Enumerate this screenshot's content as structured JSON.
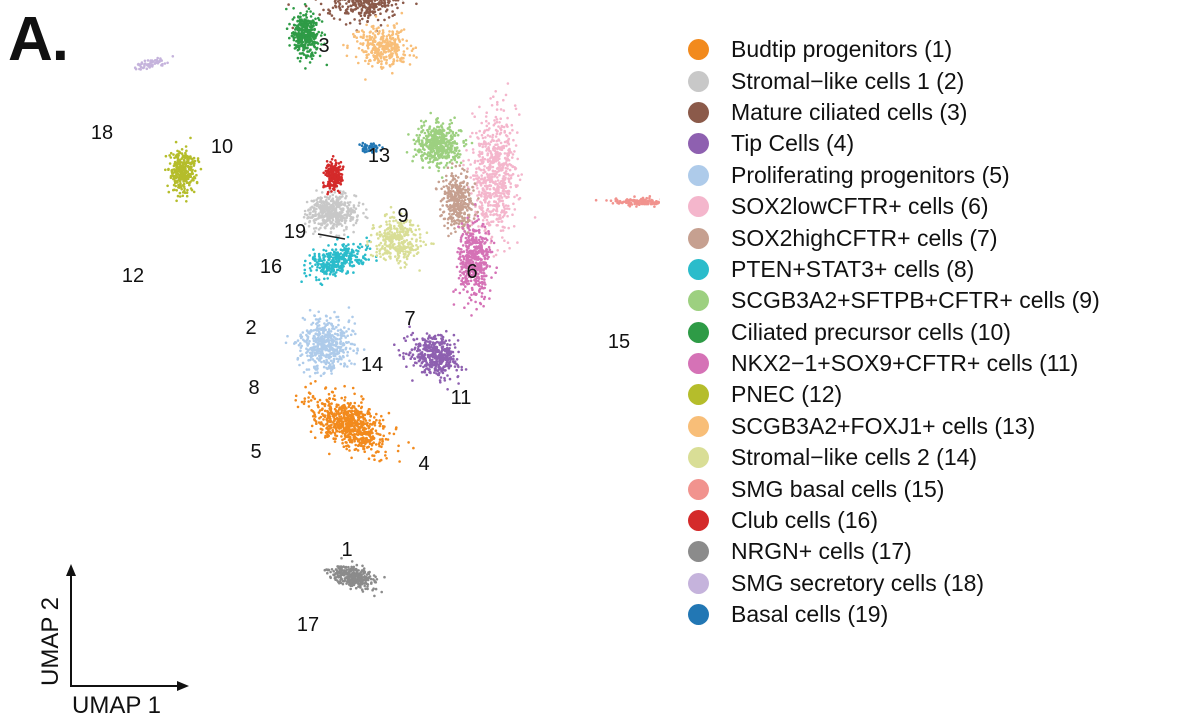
{
  "panel_label": "A.",
  "chart_data": {
    "type": "scatter",
    "title": "",
    "xlabel": "UMAP 1",
    "ylabel": "UMAP 2",
    "legend_position": "right",
    "series": [
      {
        "name": "Budtip progenitors (1)",
        "cluster_number": "1",
        "color": "#F28A1D",
        "center": [
          0.5,
          -2.6
        ],
        "spread": [
          0.95,
          0.5
        ],
        "rotation": -28,
        "points": 700
      },
      {
        "name": "Stromal−like cells 1 (2)",
        "cluster_number": "2",
        "color": "#C8C8C8",
        "center": [
          0.05,
          2.7
        ],
        "spread": [
          0.55,
          0.4
        ],
        "rotation": 0,
        "points": 450
      },
      {
        "name": "Mature ciliated cells (3)",
        "cluster_number": "3",
        "color": "#8B5A4A",
        "center": [
          0.9,
          8.15
        ],
        "spread": [
          0.85,
          0.55
        ],
        "rotation": 0,
        "points": 650
      },
      {
        "name": "Tip Cells (4)",
        "cluster_number": "4",
        "color": "#8E60B0",
        "center": [
          2.6,
          -0.9
        ],
        "spread": [
          0.6,
          0.45
        ],
        "rotation": -30,
        "points": 420
      },
      {
        "name": "Proliferating progenitors (5)",
        "cluster_number": "5",
        "color": "#AECBEA",
        "center": [
          -0.1,
          -0.6
        ],
        "spread": [
          0.55,
          0.6
        ],
        "rotation": 0,
        "points": 500
      },
      {
        "name": "SOX2lowCFTR+ cells (6)",
        "cluster_number": "6",
        "color": "#F4B6CC",
        "center": [
          4.1,
          3.6
        ],
        "spread": [
          0.5,
          1.4
        ],
        "rotation": 0,
        "points": 650
      },
      {
        "name": "SOX2highCFTR+ cells (7)",
        "cluster_number": "7",
        "color": "#C6A090",
        "center": [
          3.2,
          3.0
        ],
        "spread": [
          0.35,
          0.6
        ],
        "rotation": 0,
        "points": 350
      },
      {
        "name": "PTEN+STAT3+ cells (8)",
        "cluster_number": "8",
        "color": "#2BBCCB",
        "center": [
          0.2,
          1.5
        ],
        "spread": [
          0.7,
          0.3
        ],
        "rotation": 20,
        "points": 330
      },
      {
        "name": "SCGB3A2+SFTPB+CFTR+ cells (9)",
        "cluster_number": "9",
        "color": "#9DD080",
        "center": [
          2.7,
          4.4
        ],
        "spread": [
          0.5,
          0.45
        ],
        "rotation": 0,
        "points": 450
      },
      {
        "name": "Ciliated precursor cells (10)",
        "cluster_number": "10",
        "color": "#2E9B46",
        "center": [
          -0.6,
          7.1
        ],
        "spread": [
          0.3,
          0.5
        ],
        "rotation": 0,
        "points": 350
      },
      {
        "name": "NKX2−1+SOX9+CFTR+ cells (11)",
        "cluster_number": "11",
        "color": "#D572B6",
        "center": [
          3.6,
          1.5
        ],
        "spread": [
          0.35,
          0.85
        ],
        "rotation": 0,
        "points": 450
      },
      {
        "name": "PNEC (12)",
        "cluster_number": "12",
        "color": "#B5BD2B",
        "center": [
          -3.7,
          3.7
        ],
        "spread": [
          0.3,
          0.5
        ],
        "rotation": 0,
        "points": 320
      },
      {
        "name": "SCGB3A2+FOXJ1+ cells (13)",
        "cluster_number": "13",
        "color": "#F8BE78",
        "center": [
          1.3,
          6.8
        ],
        "spread": [
          0.6,
          0.45
        ],
        "rotation": 0,
        "points": 320
      },
      {
        "name": "Stromal−like cells 2 (14)",
        "cluster_number": "14",
        "color": "#D9DE96",
        "center": [
          1.7,
          2.0
        ],
        "spread": [
          0.55,
          0.5
        ],
        "rotation": 0,
        "points": 320
      },
      {
        "name": "SMG basal cells (15)",
        "cluster_number": "15",
        "color": "#F1938E",
        "center": [
          7.7,
          2.95
        ],
        "spread": [
          0.75,
          0.08
        ],
        "rotation": 0,
        "points": 150
      },
      {
        "name": "Club cells (16)",
        "cluster_number": "16",
        "color": "#D42A2A",
        "center": [
          0.1,
          3.6
        ],
        "spread": [
          0.2,
          0.3
        ],
        "rotation": 0,
        "points": 200
      },
      {
        "name": "NRGN+ cells (17)",
        "cluster_number": "17",
        "color": "#8B8B8B",
        "center": [
          0.55,
          -6.4
        ],
        "spread": [
          0.55,
          0.22
        ],
        "rotation": -15,
        "points": 300
      },
      {
        "name": "SMG secretory cells (18)",
        "cluster_number": "18",
        "color": "#C5B3DC",
        "center": [
          -4.5,
          6.4
        ],
        "spread": [
          0.35,
          0.1
        ],
        "rotation": 15,
        "points": 60
      },
      {
        "name": "Basal cells (19)",
        "cluster_number": "19",
        "color": "#2277B4",
        "center": [
          1.0,
          4.3
        ],
        "spread": [
          0.25,
          0.1
        ],
        "rotation": 0,
        "points": 50
      }
    ]
  }
}
